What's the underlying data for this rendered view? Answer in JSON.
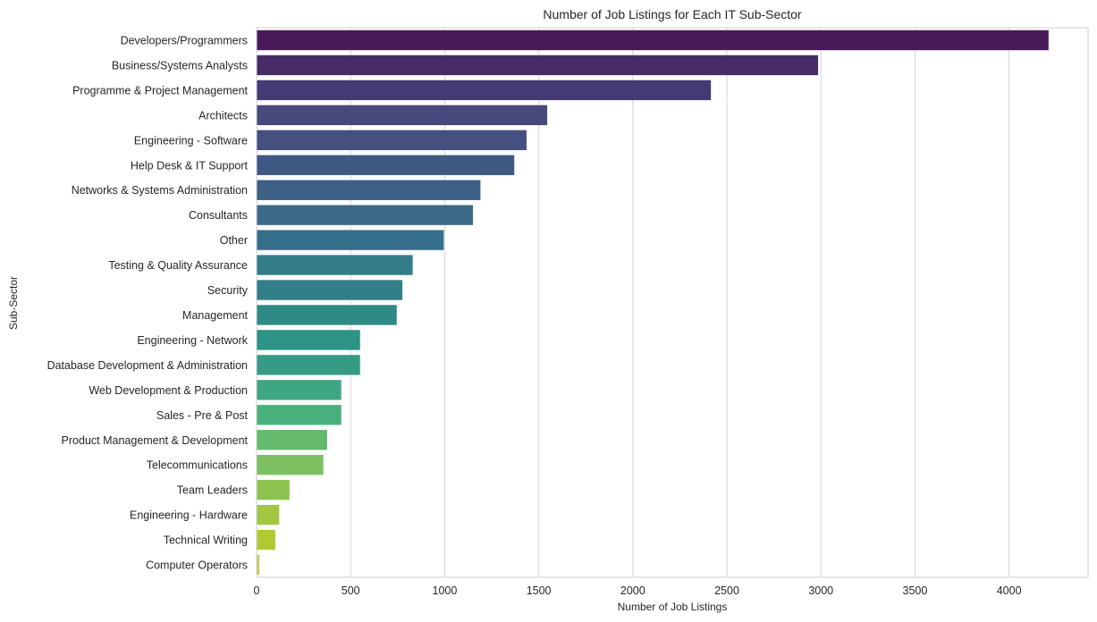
{
  "chart_data": {
    "type": "bar",
    "orientation": "horizontal",
    "title": "Number of Job Listings for Each IT Sub-Sector",
    "xlabel": "Number of Job Listings",
    "ylabel": "Sub-Sector",
    "xlim": [
      0,
      4420
    ],
    "xticks": [
      0,
      500,
      1000,
      1500,
      2000,
      2500,
      3000,
      3500,
      4000
    ],
    "grid": true,
    "palette": "viridis",
    "categories": [
      "Developers/Programmers",
      "Business/Systems Analysts",
      "Programme & Project Management",
      "Architects",
      "Engineering - Software",
      "Help Desk & IT Support",
      "Networks & Systems Administration",
      "Consultants",
      "Other",
      "Testing & Quality Assurance",
      "Security",
      "Management",
      "Engineering - Network",
      "Database Development & Administration",
      "Web Development & Production",
      "Sales - Pre & Post",
      "Product Management & Development",
      "Telecommunications",
      "Team Leaders",
      "Engineering - Hardware",
      "Technical Writing",
      "Computer Operators"
    ],
    "values": [
      4210,
      2985,
      2415,
      1545,
      1435,
      1370,
      1190,
      1150,
      995,
      830,
      775,
      745,
      550,
      550,
      450,
      450,
      375,
      355,
      175,
      120,
      100,
      15
    ],
    "colors": [
      "#481a58",
      "#472c67",
      "#453a73",
      "#47487c",
      "#454f80",
      "#3f5983",
      "#3e5f86",
      "#3c6a89",
      "#366f8b",
      "#337d87",
      "#327f87",
      "#2f8985",
      "#2c9385",
      "#369b85",
      "#3ea782",
      "#4ab07b",
      "#64b96c",
      "#7cc062",
      "#8cc350",
      "#a3c745",
      "#b1ca34",
      "#c4cb5c"
    ]
  }
}
